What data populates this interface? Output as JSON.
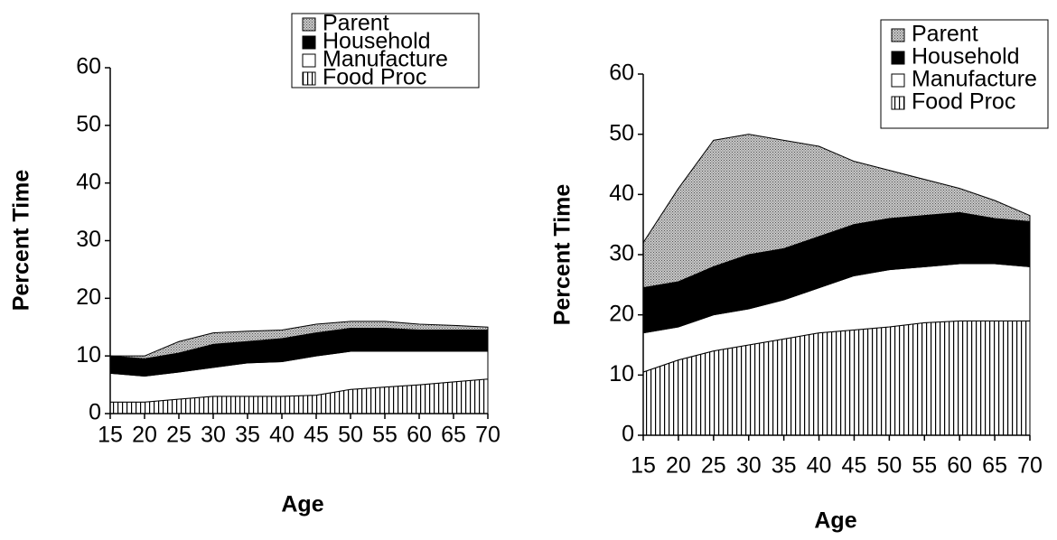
{
  "chart_data": [
    {
      "type": "stacked-area",
      "xlabel": "Age",
      "ylabel": "Percent Time",
      "x": [
        15,
        20,
        25,
        30,
        35,
        40,
        45,
        50,
        55,
        60,
        65,
        70
      ],
      "xlim": [
        15,
        70
      ],
      "xticks": [
        15,
        20,
        25,
        30,
        35,
        40,
        45,
        50,
        55,
        60,
        65,
        70
      ],
      "ylim": [
        0,
        60
      ],
      "yticks": [
        0,
        10,
        20,
        30,
        40,
        50,
        60
      ],
      "legend": "top-right",
      "series": [
        {
          "name": "Food Proc",
          "color": "#000000",
          "pattern": "stripes",
          "values": [
            2,
            2,
            2.5,
            3,
            3,
            3,
            3.2,
            4.2,
            4.6,
            5,
            5.5,
            6
          ]
        },
        {
          "name": "Manufacture",
          "color": "#ffffff",
          "pattern": "solid",
          "values": [
            5,
            4.5,
            4.7,
            5,
            5.8,
            6,
            6.8,
            6.6,
            6.2,
            5.8,
            5.3,
            4.8
          ]
        },
        {
          "name": "Household",
          "color": "#000000",
          "pattern": "solid",
          "values": [
            3,
            3,
            3.3,
            4,
            3.7,
            4,
            4,
            4,
            4,
            3.7,
            3.7,
            3.7
          ]
        },
        {
          "name": "Parent",
          "color": "#808080",
          "pattern": "dots",
          "values": [
            0,
            0.5,
            2,
            2,
            1.8,
            1.5,
            1.5,
            1.2,
            1.2,
            1,
            0.8,
            0.5
          ]
        }
      ]
    },
    {
      "type": "stacked-area",
      "xlabel": "Age",
      "ylabel": "Percent Time",
      "x": [
        15,
        20,
        25,
        30,
        35,
        40,
        45,
        50,
        55,
        60,
        65,
        70
      ],
      "xlim": [
        15,
        70
      ],
      "xticks": [
        15,
        20,
        25,
        30,
        35,
        40,
        45,
        50,
        55,
        60,
        65,
        70
      ],
      "ylim": [
        0,
        60
      ],
      "yticks": [
        0,
        10,
        20,
        30,
        40,
        50,
        60
      ],
      "legend": "top-right",
      "series": [
        {
          "name": "Food Proc",
          "color": "#000000",
          "pattern": "stripes",
          "values": [
            10.5,
            12.5,
            14,
            15,
            16,
            17,
            17.5,
            18,
            18.7,
            19,
            19,
            19
          ]
        },
        {
          "name": "Manufacture",
          "color": "#ffffff",
          "pattern": "solid",
          "values": [
            6.5,
            5.5,
            6,
            6,
            6.5,
            7.5,
            9,
            9.5,
            9.3,
            9.5,
            9.5,
            9
          ]
        },
        {
          "name": "Household",
          "color": "#000000",
          "pattern": "solid",
          "values": [
            7.5,
            7.5,
            8,
            9,
            8.5,
            8.5,
            8.5,
            8.5,
            8.5,
            8.5,
            7.5,
            7.5
          ]
        },
        {
          "name": "Parent",
          "color": "#808080",
          "pattern": "dots",
          "values": [
            7.5,
            15.5,
            21,
            20,
            18,
            15,
            10.5,
            8,
            6,
            4,
            3,
            1
          ]
        }
      ]
    }
  ]
}
